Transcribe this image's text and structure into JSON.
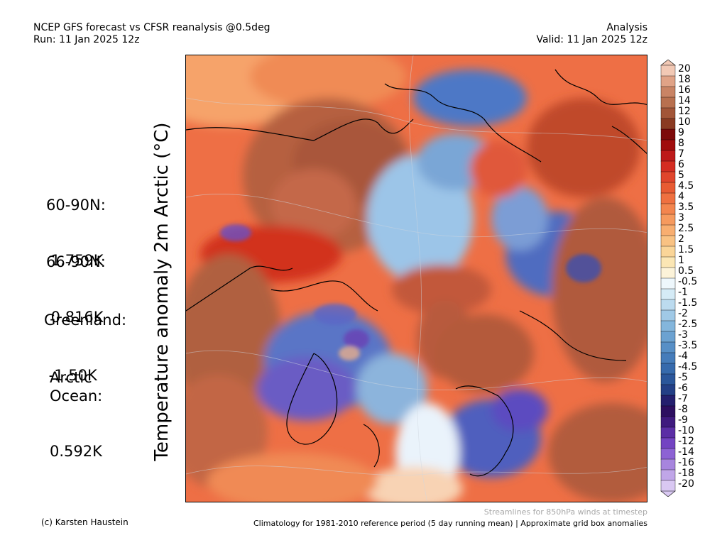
{
  "header": {
    "title_line1": "NCEP GFS forecast vs CFSR reanalysis @0.5deg",
    "title_line2": "Run: 11 Jan 2025 12z",
    "right_line1": "Analysis",
    "right_line2": "Valid: 11 Jan 2025 12z"
  },
  "y_label": "Temperature anomaly 2m Arctic (°C)",
  "stats": [
    {
      "label": "60-90N:",
      "value": " 1.759K"
    },
    {
      "label": "66-90N:",
      "value": " 0.816K"
    },
    {
      "label": "Greenland:",
      "value": " -1.50K"
    },
    {
      "label": "Arctic\nOcean:",
      "value": "0.592K"
    }
  ],
  "colorbar": {
    "labels": [
      "20",
      "18",
      "16",
      "14",
      "12",
      "10",
      "9",
      "8",
      "7",
      "6",
      "5",
      "4.5",
      "4",
      "3.5",
      "3",
      "2.5",
      "2",
      "1.5",
      "1",
      "0.5",
      "-0.5",
      "-1",
      "-1.5",
      "-2",
      "-2.5",
      "-3",
      "-3.5",
      "-4",
      "-4.5",
      "-5",
      "-6",
      "-7",
      "-8",
      "-9",
      "-10",
      "-12",
      "-14",
      "-16",
      "-18",
      "-20"
    ],
    "colors": [
      "#f2c9b5",
      "#e0a387",
      "#c98465",
      "#b8704f",
      "#a25538",
      "#8a3a22",
      "#7d0a0a",
      "#a00d0d",
      "#bd1a1a",
      "#d42d22",
      "#e0452c",
      "#e85b33",
      "#ef7040",
      "#f3854e",
      "#f69a5e",
      "#f8ae70",
      "#f9c283",
      "#fad598",
      "#fbe6b4",
      "#fcf3d9",
      "#eef7fc",
      "#d5ebf6",
      "#bcdbef",
      "#a0c9e6",
      "#84b6dc",
      "#6ca2d1",
      "#578fc6",
      "#457cba",
      "#366aac",
      "#2a569a",
      "#233f86",
      "#241f6e",
      "#2d0f60",
      "#3f1a7e",
      "#5b2ea5",
      "#7343c2",
      "#8d62d4",
      "#a785de",
      "#c0a6e8",
      "#d9c8f2"
    ]
  },
  "notes": {
    "streamlines": "Streamlines for 850hPa winds at timestep",
    "credit": "(c) Karsten Haustein",
    "climatology": "Climatology for 1981-2010 reference period (5 day running mean) | Approximate grid box anomalies"
  }
}
